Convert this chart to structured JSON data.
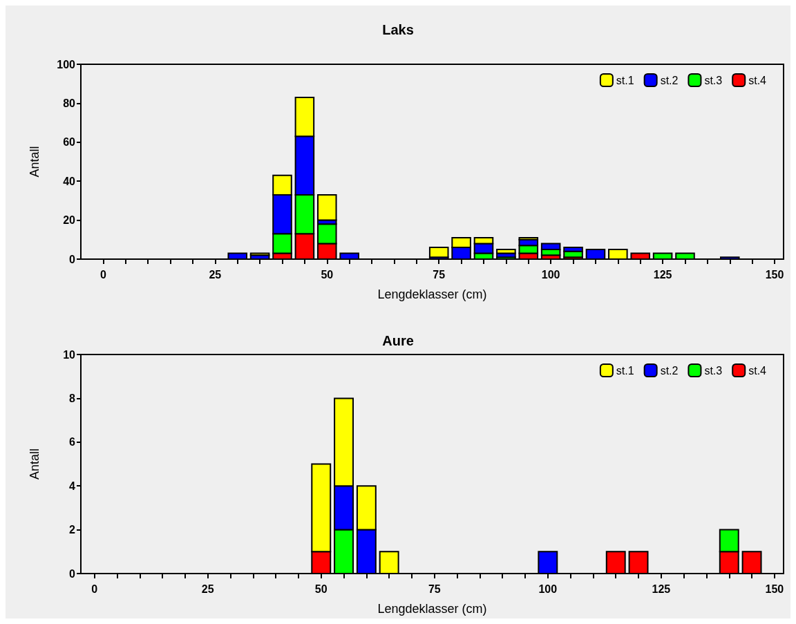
{
  "chart_data": [
    {
      "type": "bar",
      "title": "Laks",
      "xlabel": "Lengdeklasser (cm)",
      "ylabel": "Antall",
      "stacked": true,
      "legend": "top right",
      "grid": false,
      "x": [
        30,
        35,
        40,
        45,
        50,
        55,
        75,
        80,
        85,
        90,
        95,
        100,
        105,
        110,
        115,
        120,
        125,
        130,
        140
      ],
      "series": [
        {
          "name": "st.4",
          "color": "#ff0000",
          "values": [
            null,
            null,
            3,
            13,
            8,
            null,
            null,
            null,
            null,
            null,
            3,
            2,
            1,
            null,
            null,
            3,
            null,
            null,
            null
          ]
        },
        {
          "name": "st.3",
          "color": "#00ff00",
          "values": [
            null,
            null,
            10,
            20,
            10,
            null,
            null,
            null,
            3,
            1,
            4,
            3,
            3,
            null,
            null,
            null,
            3,
            3,
            null
          ]
        },
        {
          "name": "st.2",
          "color": "#0000ff",
          "values": [
            3,
            2,
            20,
            30,
            2,
            3,
            1,
            6,
            5,
            2,
            3,
            3,
            2,
            5,
            null,
            null,
            null,
            null,
            1
          ]
        },
        {
          "name": "st.1",
          "color": "#ffff00",
          "values": [
            null,
            1,
            10,
            20,
            13,
            null,
            5,
            5,
            3,
            2,
            1,
            null,
            null,
            null,
            5,
            null,
            null,
            null,
            null
          ]
        }
      ],
      "xlim": [
        -5,
        152
      ],
      "xticks": [
        0,
        {
          "value": 5,
          "label": null
        },
        {
          "value": 10,
          "label": null
        },
        {
          "value": 15,
          "label": null
        },
        {
          "value": 20,
          "label": null
        },
        25,
        {
          "value": 30,
          "label": null
        },
        {
          "value": 35,
          "label": null
        },
        {
          "value": 40,
          "label": null
        },
        {
          "value": 45,
          "label": null
        },
        50,
        {
          "value": 55,
          "label": null
        },
        {
          "value": 60,
          "label": null
        },
        {
          "value": 65,
          "label": null
        },
        {
          "value": 70,
          "label": null
        },
        75,
        {
          "value": 80,
          "label": null
        },
        {
          "value": 85,
          "label": null
        },
        {
          "value": 90,
          "label": null
        },
        {
          "value": 95,
          "label": null
        },
        100,
        {
          "value": 105,
          "label": null
        },
        {
          "value": 110,
          "label": null
        },
        {
          "value": 115,
          "label": null
        },
        {
          "value": 120,
          "label": null
        },
        125,
        {
          "value": 130,
          "label": null
        },
        {
          "value": 135,
          "label": null
        },
        {
          "value": 140,
          "label": null
        },
        {
          "value": 145,
          "label": null
        },
        150
      ],
      "ylim": [
        0,
        100
      ],
      "yticks": [
        0,
        20,
        40,
        60,
        80,
        100
      ]
    },
    {
      "type": "bar",
      "title": "Aure",
      "xlabel": "Lengdeklasser (cm)",
      "ylabel": "Antall",
      "stacked": true,
      "legend": "top right",
      "grid": false,
      "x": [
        50,
        55,
        60,
        65,
        100,
        115,
        120,
        140,
        145
      ],
      "series": [
        {
          "name": "st.4",
          "color": "#ff0000",
          "values": [
            1,
            null,
            null,
            null,
            null,
            1,
            1,
            1,
            1
          ]
        },
        {
          "name": "st.3",
          "color": "#00ff00",
          "values": [
            null,
            2,
            null,
            null,
            null,
            null,
            null,
            1,
            null
          ]
        },
        {
          "name": "st.2",
          "color": "#0000ff",
          "values": [
            null,
            2,
            2,
            null,
            1,
            null,
            null,
            null,
            null
          ]
        },
        {
          "name": "st.1",
          "color": "#ffff00",
          "values": [
            4,
            4,
            2,
            1,
            null,
            null,
            null,
            null,
            null
          ]
        }
      ],
      "xlim": [
        -3,
        152
      ],
      "xticks": [
        0,
        {
          "value": 5,
          "label": null
        },
        {
          "value": 10,
          "label": null
        },
        {
          "value": 15,
          "label": null
        },
        {
          "value": 20,
          "label": null
        },
        25,
        {
          "value": 30,
          "label": null
        },
        {
          "value": 35,
          "label": null
        },
        {
          "value": 40,
          "label": null
        },
        {
          "value": 45,
          "label": null
        },
        50,
        {
          "value": 55,
          "label": null
        },
        {
          "value": 60,
          "label": null
        },
        {
          "value": 65,
          "label": null
        },
        {
          "value": 70,
          "label": null
        },
        75,
        {
          "value": 80,
          "label": null
        },
        {
          "value": 85,
          "label": null
        },
        {
          "value": 90,
          "label": null
        },
        {
          "value": 95,
          "label": null
        },
        100,
        {
          "value": 105,
          "label": null
        },
        {
          "value": 110,
          "label": null
        },
        {
          "value": 115,
          "label": null
        },
        {
          "value": 120,
          "label": null
        },
        125,
        {
          "value": 130,
          "label": null
        },
        {
          "value": 135,
          "label": null
        },
        {
          "value": 140,
          "label": null
        },
        {
          "value": 145,
          "label": null
        },
        150
      ],
      "ylim": [
        0,
        10
      ],
      "yticks": [
        0,
        2,
        4,
        6,
        8,
        10
      ]
    }
  ]
}
